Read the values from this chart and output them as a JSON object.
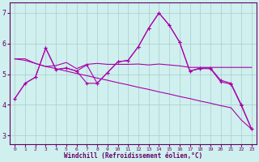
{
  "xlabel": "Windchill (Refroidissement éolien,°C)",
  "bg_color": "#cff0ee",
  "line_color": "#aa00aa",
  "grid_color": "#aacccc",
  "x_ticks": [
    0,
    1,
    2,
    3,
    4,
    5,
    6,
    7,
    8,
    9,
    10,
    11,
    12,
    13,
    14,
    15,
    16,
    17,
    18,
    19,
    20,
    21,
    22,
    23
  ],
  "y_ticks": [
    3,
    4,
    5,
    6,
    7
  ],
  "xlim": [
    -0.5,
    23.5
  ],
  "ylim": [
    2.7,
    7.35
  ],
  "series1_x": [
    0,
    1,
    2,
    3,
    4,
    5,
    6,
    7,
    8,
    9,
    10,
    11,
    12,
    13,
    14,
    15,
    16,
    17,
    18,
    19,
    20,
    21,
    22,
    23
  ],
  "series1_y": [
    4.2,
    4.7,
    4.9,
    5.85,
    5.15,
    5.2,
    5.1,
    5.3,
    4.7,
    5.05,
    5.4,
    5.45,
    5.9,
    6.5,
    7.0,
    6.6,
    6.05,
    5.1,
    5.2,
    5.2,
    4.8,
    4.7,
    4.0,
    3.2
  ],
  "series2_x": [
    0,
    1,
    2,
    3,
    4,
    5,
    6,
    7,
    8,
    9,
    10,
    11,
    12,
    13,
    14,
    15,
    16,
    17,
    18,
    19,
    20,
    21,
    22,
    23
  ],
  "series2_y": [
    5.5,
    5.5,
    5.35,
    5.25,
    5.28,
    5.38,
    5.18,
    5.32,
    5.35,
    5.32,
    5.32,
    5.32,
    5.33,
    5.3,
    5.33,
    5.3,
    5.27,
    5.22,
    5.22,
    5.22,
    5.22,
    5.22,
    5.22,
    5.22
  ],
  "series3_x": [
    0,
    1,
    2,
    3,
    4,
    5,
    6,
    7,
    8,
    9,
    10,
    11,
    12,
    13,
    14,
    15,
    16,
    17,
    18,
    19,
    20,
    21,
    22,
    23
  ],
  "series3_y": [
    5.5,
    5.45,
    5.35,
    5.25,
    5.18,
    5.1,
    5.02,
    4.95,
    4.87,
    4.8,
    4.72,
    4.65,
    4.57,
    4.5,
    4.42,
    4.35,
    4.27,
    4.2,
    4.12,
    4.05,
    3.97,
    3.9,
    3.5,
    3.2
  ],
  "series4_x": [
    0,
    1,
    2,
    3,
    4,
    5,
    6,
    7,
    8,
    9,
    10,
    11,
    12,
    13,
    14,
    15,
    16,
    17,
    18,
    19,
    20,
    21,
    22,
    23
  ],
  "series4_y": [
    4.2,
    4.7,
    4.9,
    5.85,
    5.15,
    5.2,
    5.1,
    4.7,
    4.7,
    5.05,
    5.4,
    5.45,
    5.9,
    6.5,
    7.0,
    6.6,
    6.05,
    5.1,
    5.18,
    5.18,
    4.75,
    4.67,
    3.97,
    3.2
  ]
}
